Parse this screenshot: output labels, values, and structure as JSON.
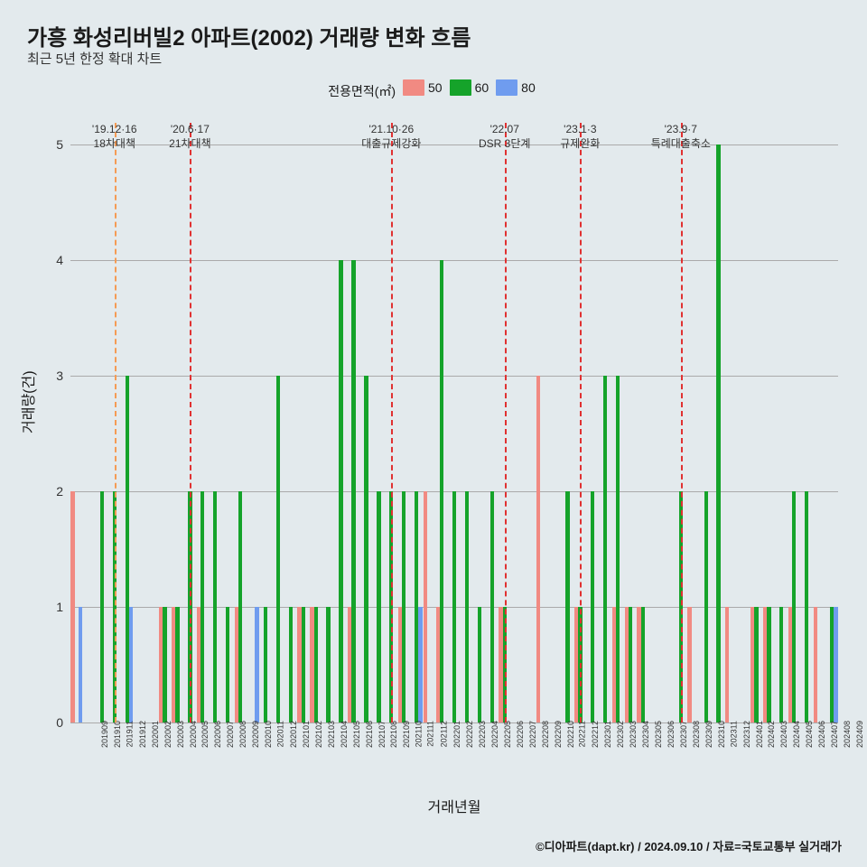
{
  "title": "가흥 화성리버빌2 아파트(2002) 거래량 변화 흐름",
  "subtitle": "최근 5년 한정 확대 차트",
  "legend": {
    "label": "전용면적(㎡)",
    "items": [
      {
        "label": "50",
        "color": "#f18a82"
      },
      {
        "label": "60",
        "color": "#15a32a"
      },
      {
        "label": "80",
        "color": "#6f9cef"
      }
    ]
  },
  "ylabel": "거래량(건)",
  "xlabel": "거래년월",
  "credit": "©디아파트(dapt.kr) / 2024.09.10 / 자료=국토교통부 실거래가",
  "chart": {
    "type": "bar",
    "ylim": [
      0,
      5
    ],
    "ytick_step": 1,
    "grid_color": "#aaaaaa",
    "background_color": "#e3eaed",
    "categories": [
      "201909",
      "201910",
      "201911",
      "201912",
      "202001",
      "202002",
      "202003",
      "202004",
      "202005",
      "202006",
      "202007",
      "202008",
      "202009",
      "202010",
      "202011",
      "202012",
      "202101",
      "202102",
      "202103",
      "202104",
      "202105",
      "202106",
      "202107",
      "202108",
      "202109",
      "202110",
      "202111",
      "202112",
      "202201",
      "202202",
      "202203",
      "202204",
      "202205",
      "202206",
      "202207",
      "202208",
      "202209",
      "202210",
      "202211",
      "202212",
      "202301",
      "202302",
      "202303",
      "202304",
      "202305",
      "202306",
      "202307",
      "202308",
      "202309",
      "202310",
      "202311",
      "202312",
      "202401",
      "202402",
      "202403",
      "202404",
      "202405",
      "202406",
      "202407",
      "202408",
      "202409"
    ],
    "series": [
      {
        "name": "50",
        "color": "#f18a82",
        "values": [
          2,
          0,
          0,
          0,
          0,
          0,
          0,
          1,
          1,
          0,
          1,
          0,
          0,
          1,
          0,
          0,
          0,
          0,
          1,
          1,
          0,
          0,
          1,
          0,
          0,
          0,
          1,
          0,
          2,
          1,
          0,
          0,
          0,
          0,
          1,
          0,
          0,
          3,
          0,
          0,
          1,
          0,
          0,
          1,
          1,
          1,
          0,
          0,
          0,
          1,
          0,
          0,
          1,
          0,
          1,
          1,
          0,
          1,
          0,
          1,
          0
        ],
        "offset": 0
      },
      {
        "name": "60",
        "color": "#15a32a",
        "values": [
          0,
          0,
          2,
          2,
          3,
          0,
          0,
          1,
          1,
          2,
          2,
          2,
          1,
          2,
          0,
          1,
          3,
          1,
          1,
          1,
          1,
          4,
          4,
          3,
          2,
          2,
          2,
          2,
          0,
          4,
          2,
          2,
          1,
          2,
          1,
          0,
          0,
          0,
          0,
          2,
          1,
          2,
          3,
          3,
          1,
          1,
          0,
          0,
          2,
          0,
          2,
          5,
          0,
          0,
          1,
          1,
          1,
          2,
          2,
          0,
          1
        ],
        "offset": 1
      },
      {
        "name": "80",
        "color": "#6f9cef",
        "values": [
          1,
          0,
          0,
          0,
          1,
          0,
          0,
          0,
          0,
          0,
          0,
          0,
          0,
          0,
          1,
          0,
          0,
          0,
          0,
          0,
          0,
          0,
          0,
          0,
          0,
          0,
          0,
          1,
          0,
          0,
          0,
          0,
          0,
          0,
          0,
          0,
          0,
          0,
          0,
          0,
          0,
          0,
          0,
          0,
          0,
          0,
          0,
          0,
          0,
          0,
          0,
          0,
          0,
          0,
          0,
          0,
          0,
          0,
          0,
          0,
          1
        ],
        "offset": 2
      }
    ],
    "events": [
      {
        "category": "201912",
        "color": "#f59b54",
        "line1": "'19.12·16",
        "line2": "18차대책"
      },
      {
        "category": "202006",
        "color": "#e03131",
        "line1": "'20.6·17",
        "line2": "21차대책"
      },
      {
        "category": "202110",
        "color": "#e03131",
        "line1": "'21.10·26",
        "line2": "대출규제강화"
      },
      {
        "category": "202207",
        "color": "#e03131",
        "line1": "'22.07",
        "line2": "DSR 3단계"
      },
      {
        "category": "202301",
        "color": "#e03131",
        "line1": "'23.1·3",
        "line2": "규제완화"
      },
      {
        "category": "202309",
        "color": "#e03131",
        "line1": "'23.9·7",
        "line2": "특례대출축소"
      }
    ]
  }
}
